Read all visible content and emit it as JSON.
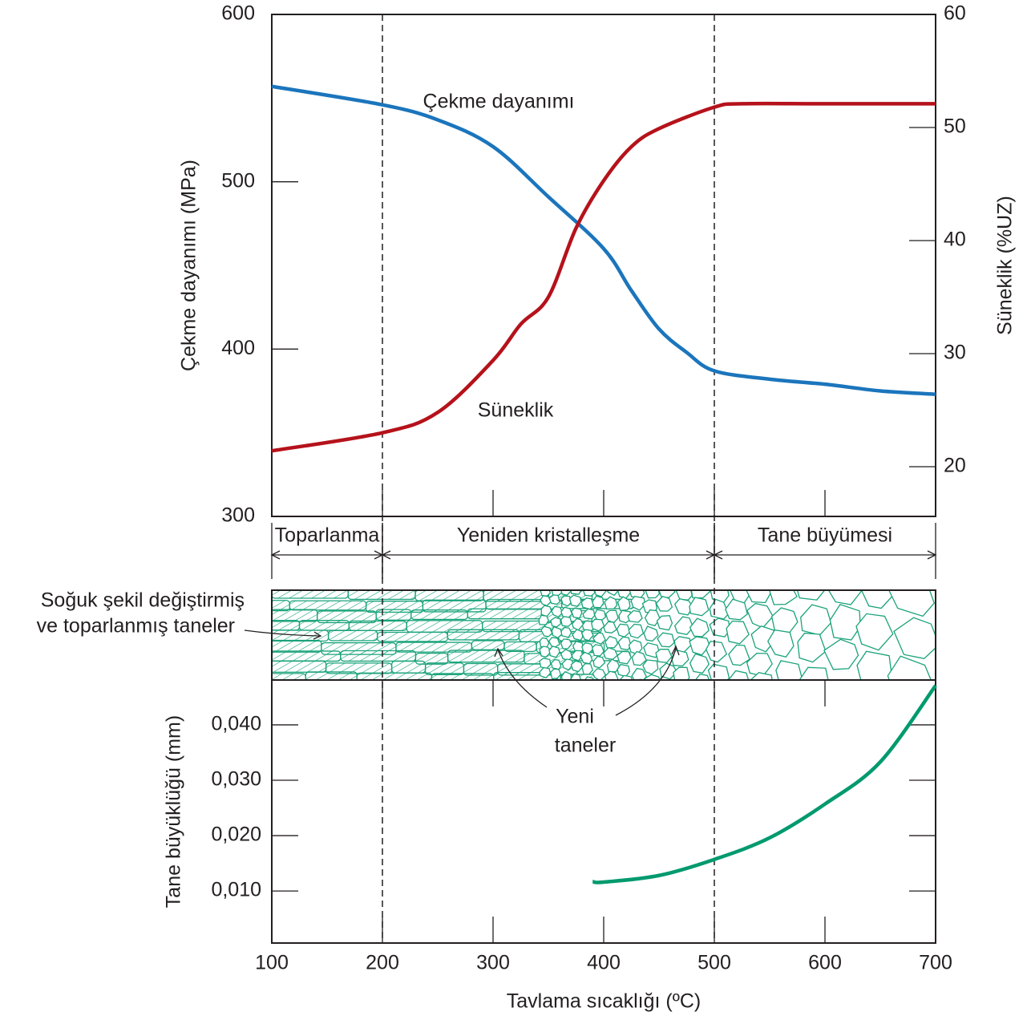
{
  "chart_data": [
    {
      "type": "line",
      "y_label": "Çekme dayanımı (MPa)",
      "y2_label": "Süneklik (%UZ)",
      "xlim": [
        100,
        700
      ],
      "xticks": [
        100,
        200,
        300,
        400,
        500,
        600,
        700
      ],
      "ylim": [
        300,
        600
      ],
      "yticks": [
        300,
        400,
        500,
        600
      ],
      "y2lim": [
        15.6,
        60
      ],
      "y2ticks": [
        20,
        30,
        40,
        50,
        60
      ],
      "boundaries": [
        200,
        500
      ],
      "regions": [
        {
          "name": "Toparlanma",
          "from": 100,
          "to": 200
        },
        {
          "name": "Yeniden kristalleşme",
          "from": 200,
          "to": 500
        },
        {
          "name": "Tane büyümesi",
          "from": 500,
          "to": 700
        }
      ],
      "series": [
        {
          "name": "Çekme dayanımı",
          "color": "#1b75bc",
          "x": [
            100,
            200,
            250,
            300,
            350,
            400,
            425,
            450,
            475,
            500,
            550,
            600,
            650,
            700
          ],
          "values": [
            557,
            546,
            537,
            521,
            491,
            460,
            435,
            412,
            398,
            387,
            382,
            379,
            375,
            373
          ]
        },
        {
          "name": "Süneklik",
          "color": "#b5121b",
          "axis": "y2",
          "x": [
            100,
            200,
            250,
            300,
            325,
            350,
            375,
            400,
            425,
            450,
            500,
            525,
            600,
            700
          ],
          "values": [
            21.4,
            23.0,
            24.8,
            29.4,
            32.6,
            35.0,
            41.1,
            45.3,
            48.3,
            49.9,
            51.8,
            52.1,
            52.1,
            52.1
          ]
        }
      ],
      "annotations": [
        "Soğuk şekil değiştirmiş",
        "ve toparlanmış taneler",
        "Yeni",
        "taneler"
      ]
    },
    {
      "type": "line",
      "x_label": "Tavlama sıcaklığı (ºC)",
      "y_label": "Tane büyüklüğü (mm)",
      "xlim": [
        100,
        700
      ],
      "xticks": [
        100,
        200,
        300,
        400,
        500,
        600,
        700
      ],
      "ylim": [
        0.0006,
        0.0481
      ],
      "yticks": [
        {
          "value": 0.01,
          "label": "0,010"
        },
        {
          "value": 0.02,
          "label": "0,020"
        },
        {
          "value": 0.03,
          "label": "0,030"
        },
        {
          "value": 0.04,
          "label": "0,040"
        }
      ],
      "series": [
        {
          "color": "#009a6e",
          "x": [
            390,
            400,
            450,
            500,
            550,
            600,
            650,
            700
          ],
          "values": [
            0.0117,
            0.0116,
            0.0128,
            0.0157,
            0.0196,
            0.0257,
            0.0333,
            0.0471
          ]
        }
      ]
    }
  ]
}
